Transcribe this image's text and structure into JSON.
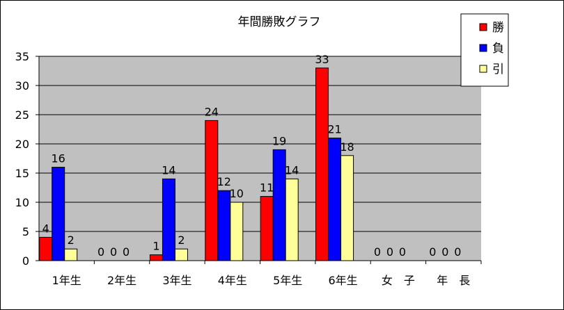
{
  "chart_data": {
    "type": "bar",
    "title": "年間勝敗グラフ",
    "categories": [
      "1年生",
      "2年生",
      "3年生",
      "4年生",
      "5年生",
      "6年生",
      "女　子",
      "年　長"
    ],
    "series": [
      {
        "name": "勝",
        "color": "#ff0000",
        "values": [
          4,
          0,
          1,
          24,
          11,
          33,
          0,
          0
        ]
      },
      {
        "name": "負",
        "color": "#0000ff",
        "values": [
          16,
          0,
          14,
          12,
          19,
          21,
          0,
          0
        ]
      },
      {
        "name": "引",
        "color": "#ffff99",
        "values": [
          2,
          0,
          2,
          10,
          14,
          18,
          0,
          0
        ]
      }
    ],
    "ylim": [
      0,
      35
    ],
    "yticks": [
      0,
      5,
      10,
      15,
      20,
      25,
      30,
      35
    ],
    "plot_background": "#c0c0c0",
    "grid": true,
    "data_labels": true,
    "legend_position": "top-right"
  }
}
